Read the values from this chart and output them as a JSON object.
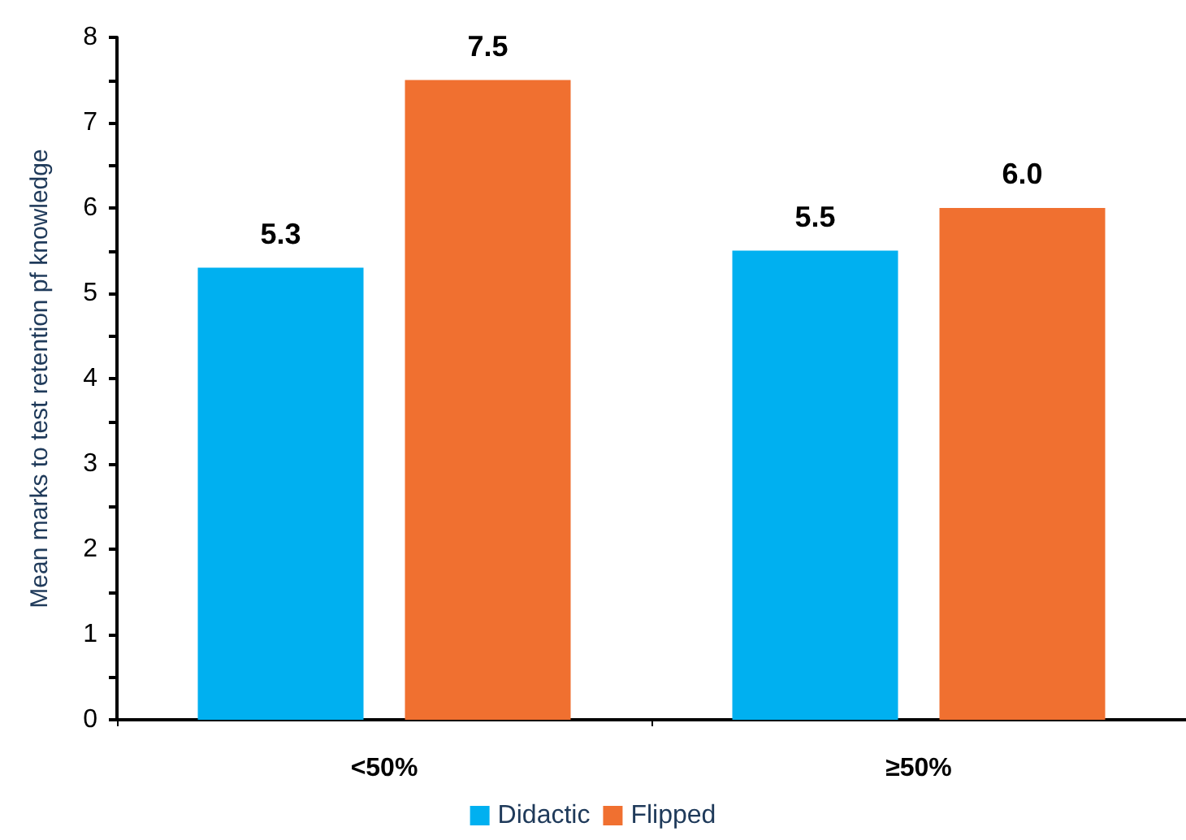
{
  "chart_data": {
    "type": "bar",
    "ylabel": "Mean marks to test retention pf knowledge",
    "categories": [
      "<50%",
      "≥50%"
    ],
    "series": [
      {
        "name": "Didactic",
        "color": "#00b0f0",
        "values": [
          5.3,
          5.5
        ],
        "value_labels": [
          "5.3",
          "5.5"
        ]
      },
      {
        "name": "Flipped",
        "color": "#f07030",
        "values": [
          7.5,
          6.0
        ],
        "value_labels": [
          "7.5",
          "6.0"
        ]
      }
    ],
    "ylim": [
      0,
      8
    ],
    "yticks": [
      0,
      {
        "value": 0.5,
        "label": null
      },
      1,
      {
        "value": 1.5,
        "label": null
      },
      2,
      {
        "value": 2.5,
        "label": null
      },
      3,
      {
        "value": 3.5,
        "label": null
      },
      4,
      {
        "value": 4.5,
        "label": null
      },
      5,
      {
        "value": 5.5,
        "label": null
      },
      6,
      {
        "value": 6.5,
        "label": null
      },
      7,
      {
        "value": 7.5,
        "label": null
      },
      8
    ],
    "grid": false,
    "legend": "bottom"
  }
}
